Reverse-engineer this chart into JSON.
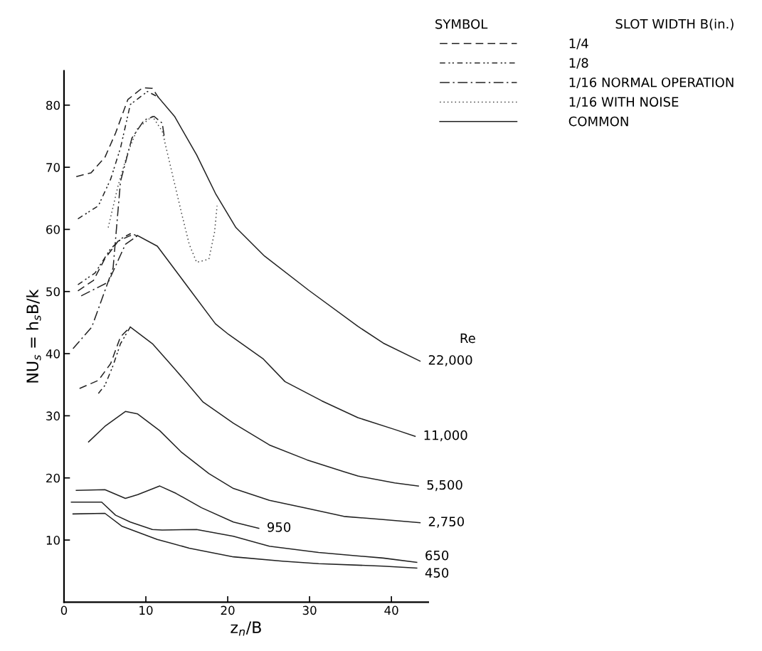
{
  "chart_data": {
    "type": "line",
    "xlabel": "z$_{n}$/B",
    "ylabel": "NU$_{s}$ = h$_{s}$B/k",
    "legend_title": "SLOT WIDTH B(in.)",
    "legend": "top right",
    "grid": false,
    "marker": "none",
    "xlim": [
      0,
      44.5
    ],
    "ylim": [
      0,
      85.5
    ],
    "xticks": [
      0,
      10,
      20,
      30,
      40
    ],
    "yticks": [
      10,
      20,
      30,
      40,
      50,
      60,
      70,
      80
    ],
    "series": [
      {
        "name": "1/4",
        "color": "#222222",
        "line_style": "dashed",
        "x": [
          1.5,
          3.3,
          5.0,
          6.3,
          7.8,
          9.6,
          10.8,
          11.5
        ],
        "values": [
          68.5,
          69.1,
          71.6,
          75.5,
          80.9,
          82.8,
          82.7,
          81.3
        ]
      },
      {
        "name": "1/8",
        "color": "#222222",
        "line_style": "dashdotdot",
        "x": [
          1.7,
          4.2,
          5.7,
          6.9,
          8.1,
          10.2,
          11.5
        ],
        "values": [
          61.7,
          63.8,
          68.1,
          73.1,
          80.1,
          82.2,
          81.3
        ]
      },
      {
        "name": "1/16 NORMAL OPERATION",
        "color": "#222222",
        "line_style": "dashdot",
        "x": [
          1.1,
          3.4,
          6.0,
          6.9,
          8.3,
          9.8,
          11.0,
          12.0,
          12.3
        ],
        "values": [
          40.8,
          44.3,
          53.8,
          67.7,
          74.7,
          77.6,
          78.2,
          77.1,
          74.5
        ]
      },
      {
        "name": "1/16 WITH NOISE",
        "color": "#444444",
        "line_style": "dotted",
        "x": [
          5.4,
          6.6,
          7.8,
          9.0,
          10.8,
          12.0,
          14.4,
          15.3,
          16.2,
          17.7,
          18.4,
          18.7
        ],
        "values": [
          60.3,
          67.0,
          72.4,
          76.3,
          78.2,
          75.8,
          62.4,
          57.6,
          54.7,
          55.2,
          59.6,
          63.8
        ]
      },
      {
        "name": "COMMON",
        "color": "#222222",
        "line_style": "solid",
        "x": [
          11.5,
          13.5,
          16.2,
          18.5,
          21.0,
          24.5,
          29.9,
          35.9,
          39.0,
          43.5
        ],
        "values": [
          81.3,
          78.2,
          72.0,
          65.8,
          60.3,
          55.7,
          50.2,
          44.4,
          41.7,
          38.8
        ]
      },
      {
        "color": "#222222",
        "line_style": "dashed",
        "x": [
          1.7,
          3.6,
          5.0,
          6.6,
          8.1,
          9.0
        ],
        "values": [
          50.1,
          51.8,
          55.3,
          58.1,
          59.0,
          59.0
        ]
      },
      {
        "color": "#222222",
        "line_style": "dashdotdot",
        "x": [
          1.7,
          3.8,
          5.7,
          7.1,
          8.1,
          9.0
        ],
        "values": [
          51.1,
          53.0,
          56.9,
          58.6,
          59.3,
          59.0
        ]
      },
      {
        "color": "#222222",
        "line_style": "dashdot",
        "x": [
          2.1,
          4.2,
          5.4,
          7.5,
          9.0
        ],
        "values": [
          49.3,
          50.7,
          51.5,
          57.6,
          59.0
        ]
      },
      {
        "color": "#222222",
        "line_style": "solid",
        "x": [
          9.0,
          11.4,
          14.3,
          18.5,
          20.1,
          24.3,
          27.0,
          31.5,
          35.9,
          40.4,
          42.9
        ],
        "values": [
          59.0,
          57.3,
          52.2,
          44.8,
          43.1,
          39.2,
          35.5,
          32.4,
          29.7,
          27.8,
          26.7
        ]
      },
      {
        "color": "#222222",
        "line_style": "dashed",
        "x": [
          1.9,
          4.2,
          5.7,
          6.9,
          8.1
        ],
        "values": [
          34.4,
          35.7,
          38.4,
          42.7,
          44.3
        ]
      },
      {
        "color": "#222222",
        "line_style": "dashdotdot",
        "x": [
          4.2,
          5.0,
          6.0,
          6.9,
          8.1
        ],
        "values": [
          33.6,
          34.9,
          38.1,
          41.6,
          44.3
        ]
      },
      {
        "color": "#222222",
        "line_style": "solid",
        "x": [
          8.1,
          10.8,
          13.7,
          17.0,
          20.7,
          25.1,
          29.7,
          34.2,
          35.9,
          40.4,
          43.3
        ],
        "values": [
          44.3,
          41.6,
          37.3,
          32.2,
          28.8,
          25.3,
          22.9,
          21.0,
          20.3,
          19.2,
          18.7
        ]
      },
      {
        "color": "#222222",
        "line_style": "solid",
        "x": [
          3.0,
          5.0,
          7.5,
          9.0,
          11.7,
          14.3,
          17.7,
          20.7,
          25.1,
          29.7,
          34.2,
          39.0,
          43.5
        ],
        "values": [
          25.8,
          28.3,
          30.7,
          30.3,
          27.6,
          24.2,
          20.7,
          18.3,
          16.4,
          15.1,
          13.8,
          13.3,
          12.8
        ]
      },
      {
        "color": "#222222",
        "line_style": "solid",
        "x": [
          1.5,
          5.0,
          7.5,
          9.0,
          11.7,
          13.7,
          16.8,
          20.7,
          23.8
        ],
        "values": [
          18.0,
          18.1,
          16.7,
          17.3,
          18.7,
          17.5,
          15.2,
          12.9,
          11.9
        ]
      },
      {
        "color": "#222222",
        "line_style": "solid",
        "x": [
          0.9,
          4.6,
          6.3,
          8.1,
          10.8,
          12.0,
          16.2,
          20.7,
          25.1,
          31.1,
          39.0,
          43.1
        ],
        "values": [
          16.1,
          16.1,
          14.0,
          12.9,
          11.7,
          11.6,
          11.7,
          10.6,
          9.0,
          8.0,
          7.1,
          6.4
        ]
      },
      {
        "color": "#222222",
        "line_style": "solid",
        "x": [
          1.1,
          5.0,
          7.1,
          11.4,
          15.3,
          20.7,
          26.7,
          31.1,
          39.0,
          43.1
        ],
        "values": [
          14.2,
          14.3,
          12.2,
          10.1,
          8.7,
          7.3,
          6.6,
          6.2,
          5.8,
          5.5
        ]
      }
    ],
    "annotations": [
      "SYMBOL",
      "Re",
      {
        "text": "22,000",
        "x": 43.5,
        "y": 38.8
      },
      {
        "text": "11,000",
        "x": 42.9,
        "y": 26.7
      },
      {
        "text": "5,500",
        "x": 43.3,
        "y": 18.7
      },
      {
        "text": "2,750",
        "x": 43.5,
        "y": 12.8
      },
      {
        "text": "950",
        "x": 23.8,
        "y": 11.9
      },
      {
        "text": "650",
        "x": 43.1,
        "y": 6.4
      },
      {
        "text": "450",
        "x": 43.1,
        "y": 5.5
      }
    ]
  }
}
